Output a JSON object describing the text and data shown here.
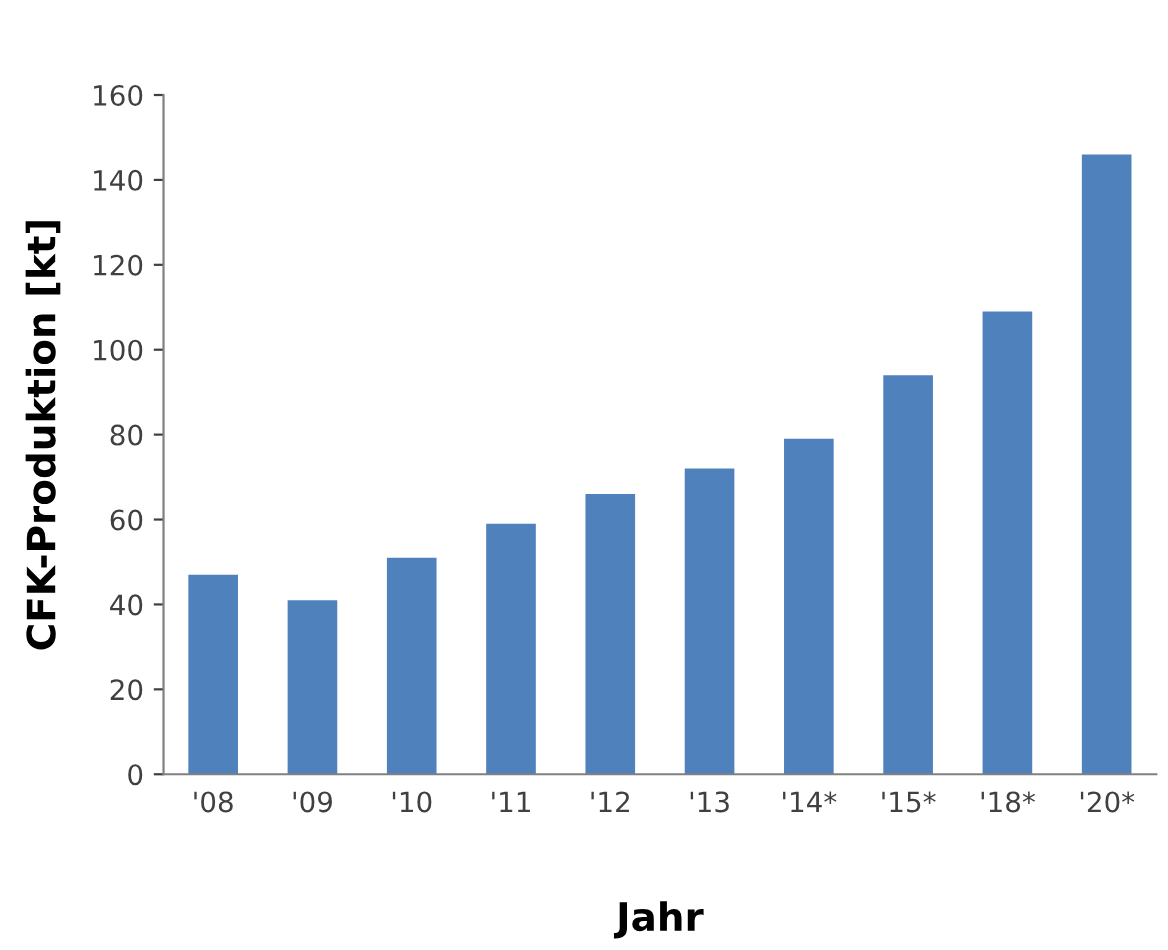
{
  "chart_data": {
    "type": "bar",
    "xlabel": "Jahr",
    "ylabel": "CFK-Produktion [kt]",
    "categories": [
      "'08",
      "'09",
      "'10",
      "'11",
      "'12",
      "'13",
      "'14*",
      "'15*",
      "'18*",
      "'20*"
    ],
    "values": [
      47,
      41,
      51,
      59,
      66,
      72,
      79,
      94,
      109,
      146
    ],
    "color": "#4f81bd",
    "ylim": [
      0,
      160
    ],
    "yticks": [
      0,
      20,
      40,
      60,
      80,
      100,
      120,
      140,
      160
    ],
    "grid": false
  }
}
